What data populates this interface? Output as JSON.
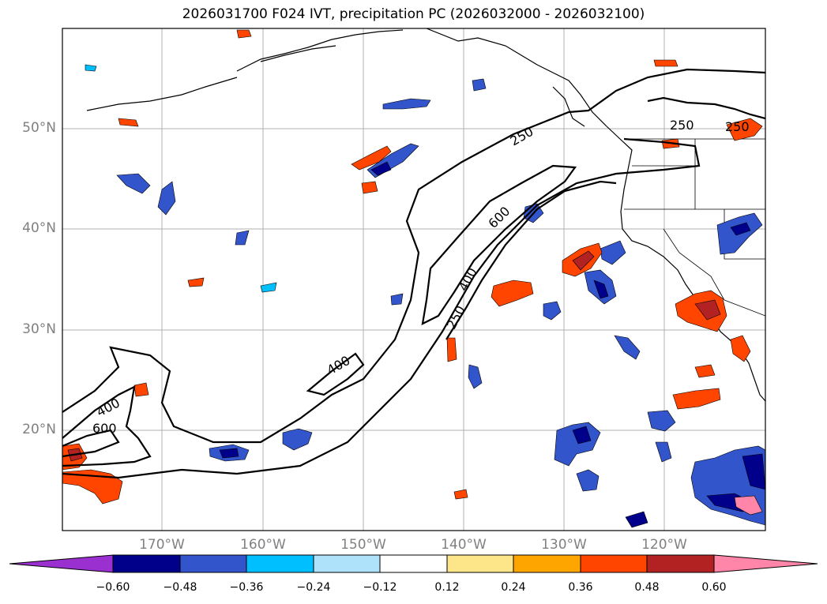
{
  "title": "2026031700 F024 IVT, precipitation PC (2026032000 - 2026032100)",
  "latitude_labels": [
    "50°N",
    "40°N",
    "30°N",
    "20°N"
  ],
  "longitude_labels": [
    "170°W",
    "160°W",
    "150°W",
    "140°W",
    "130°W",
    "120°W"
  ],
  "contour_labels": [
    "250",
    "250",
    "250",
    "600",
    "400",
    "250",
    "400",
    "400",
    "600"
  ],
  "colorbar": {
    "ticks": [
      "−0.60",
      "−0.48",
      "−0.36",
      "−0.24",
      "−0.12",
      "0.12",
      "0.24",
      "0.36",
      "0.48",
      "0.60"
    ],
    "colors": [
      "#9b30d0",
      "#00008b",
      "#3355cc",
      "#00bfff",
      "#aee2fb",
      "#ffffff",
      "#fde68a",
      "#ffa500",
      "#ff4500",
      "#b22222",
      "#ff86a8"
    ]
  },
  "colors": {
    "background": "#ffffff",
    "contour": "#000000",
    "grid": "#b0b0b0",
    "axis_label": "#808080"
  }
}
